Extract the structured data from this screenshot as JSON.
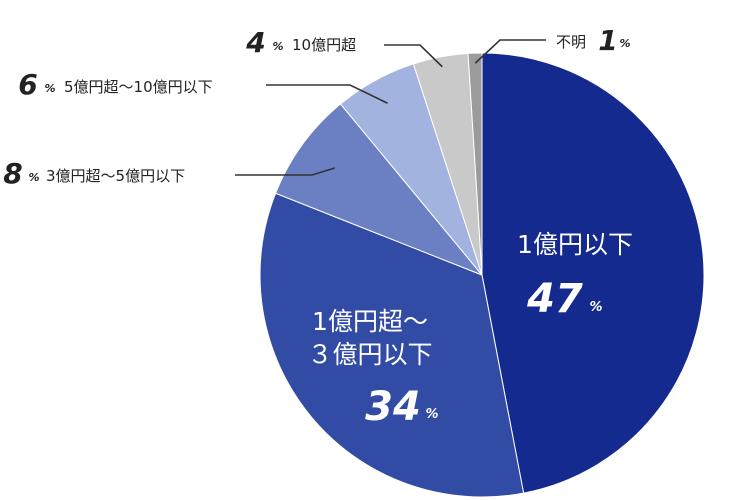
{
  "chart_data": {
    "type": "pie",
    "title": "",
    "slices": [
      {
        "label": "1億円以下",
        "value": 47,
        "color": "#142a8f"
      },
      {
        "label": "1億円超～3億円以下",
        "value": 34,
        "color": "#324ba4"
      },
      {
        "label": "3億円超～5億円以下",
        "value": 8,
        "color": "#6a80c2"
      },
      {
        "label": "5億円超～10億円以下",
        "value": 6,
        "color": "#a2b3df"
      },
      {
        "label": "10億円超",
        "value": 4,
        "color": "#c9c9c9"
      },
      {
        "label": "不明",
        "value": 1,
        "color": "#9b9b9b"
      }
    ],
    "inside_labels": [
      {
        "lines": [
          "1億円以下"
        ],
        "pct": "47"
      },
      {
        "lines": [
          "1億円超～",
          "３億円以下"
        ],
        "pct": "34"
      }
    ],
    "outside_labels": [
      {
        "text": "10億円超",
        "pct": "4"
      },
      {
        "text": "5億円超～10億円以下",
        "pct": "6"
      },
      {
        "text": "3億円超～5億円以下",
        "pct": "8"
      },
      {
        "text": "不明",
        "pct": "1"
      }
    ],
    "percent_sign": "%"
  }
}
